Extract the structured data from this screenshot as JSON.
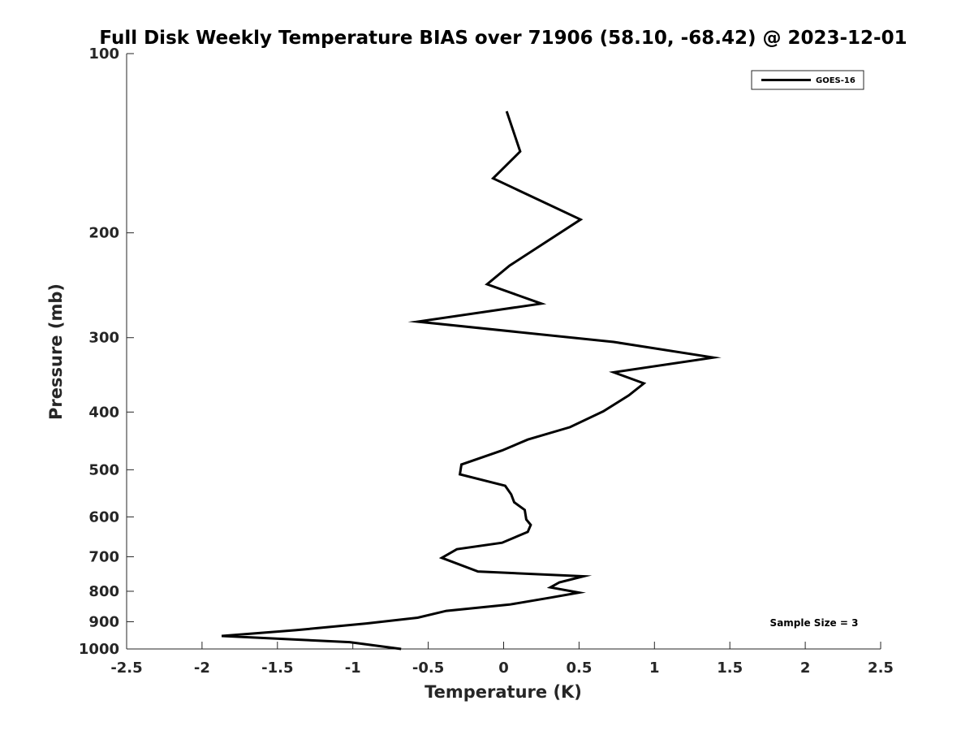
{
  "chart_data": {
    "type": "line",
    "title": "Full Disk Weekly Temperature BIAS over 71906 (58.10, -68.42) @ 2023-12-01",
    "xlabel": "Temperature (K)",
    "ylabel": "Pressure (mb)",
    "xlim": [
      -2.5,
      2.5
    ],
    "ylim": [
      100,
      1000
    ],
    "y_scale": "log",
    "y_reversed": true,
    "grid": false,
    "x_ticks": [
      -2.5,
      -2,
      -1.5,
      -1,
      -0.5,
      0,
      0.5,
      1,
      1.5,
      2,
      2.5
    ],
    "x_tick_labels": [
      "-2.5",
      "-2",
      "-1.5",
      "-1",
      "-0.5",
      "0",
      "0.5",
      "1",
      "1.5",
      "2",
      "2.5"
    ],
    "y_ticks": [
      100,
      200,
      300,
      400,
      500,
      600,
      700,
      800,
      900,
      1000
    ],
    "y_tick_labels": [
      "100",
      "200",
      "300",
      "400",
      "500",
      "600",
      "700",
      "800",
      "900",
      "1000"
    ],
    "legend": {
      "placement": "top-right",
      "entries": [
        "GOES-16"
      ]
    },
    "annotation": "Sample Size = 3",
    "series": [
      {
        "name": "GOES-16",
        "color": "#000000",
        "points": [
          {
            "x": 0.02,
            "y": 125
          },
          {
            "x": 0.11,
            "y": 146
          },
          {
            "x": -0.07,
            "y": 162
          },
          {
            "x": 0.51,
            "y": 190
          },
          {
            "x": 0.04,
            "y": 227
          },
          {
            "x": -0.11,
            "y": 244
          },
          {
            "x": 0.25,
            "y": 263
          },
          {
            "x": -0.57,
            "y": 282
          },
          {
            "x": 0.73,
            "y": 305
          },
          {
            "x": 1.39,
            "y": 324
          },
          {
            "x": 0.73,
            "y": 343
          },
          {
            "x": 0.93,
            "y": 358
          },
          {
            "x": 0.83,
            "y": 375
          },
          {
            "x": 0.66,
            "y": 399
          },
          {
            "x": 0.44,
            "y": 424
          },
          {
            "x": 0.16,
            "y": 445
          },
          {
            "x": -0.01,
            "y": 464
          },
          {
            "x": -0.28,
            "y": 490
          },
          {
            "x": -0.29,
            "y": 509
          },
          {
            "x": 0.01,
            "y": 532
          },
          {
            "x": 0.05,
            "y": 550
          },
          {
            "x": 0.07,
            "y": 567
          },
          {
            "x": 0.14,
            "y": 584
          },
          {
            "x": 0.15,
            "y": 606
          },
          {
            "x": 0.18,
            "y": 619
          },
          {
            "x": 0.16,
            "y": 636
          },
          {
            "x": -0.01,
            "y": 663
          },
          {
            "x": -0.31,
            "y": 680
          },
          {
            "x": -0.41,
            "y": 703
          },
          {
            "x": -0.17,
            "y": 741
          },
          {
            "x": 0.53,
            "y": 755
          },
          {
            "x": 0.37,
            "y": 773
          },
          {
            "x": 0.31,
            "y": 788
          },
          {
            "x": 0.5,
            "y": 804
          },
          {
            "x": 0.31,
            "y": 820
          },
          {
            "x": 0.04,
            "y": 842
          },
          {
            "x": -0.38,
            "y": 863
          },
          {
            "x": -0.57,
            "y": 886
          },
          {
            "x": -0.91,
            "y": 906
          },
          {
            "x": -1.38,
            "y": 930
          },
          {
            "x": -1.87,
            "y": 951
          },
          {
            "x": -1.02,
            "y": 974
          },
          {
            "x": -0.68,
            "y": 1000
          }
        ]
      }
    ]
  }
}
